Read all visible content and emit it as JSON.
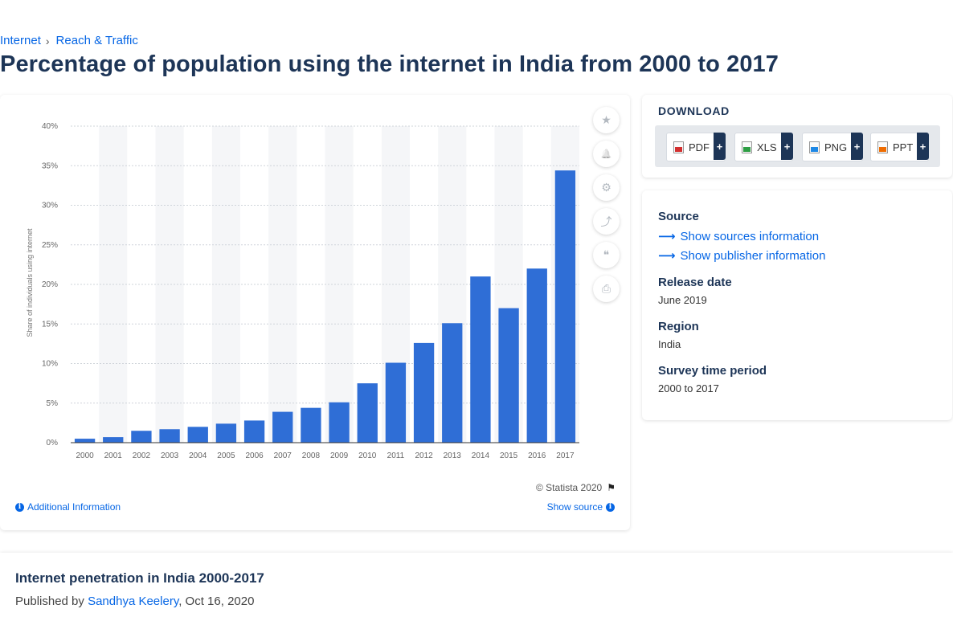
{
  "breadcrumb": {
    "items": [
      "Internet",
      "Reach & Traffic"
    ],
    "separator": "›"
  },
  "page_title": "Percentage of population using the internet in India from 2000 to 2017",
  "chart_data": {
    "type": "bar",
    "categories": [
      "2000",
      "2001",
      "2002",
      "2003",
      "2004",
      "2005",
      "2006",
      "2007",
      "2008",
      "2009",
      "2010",
      "2011",
      "2012",
      "2013",
      "2014",
      "2015",
      "2016",
      "2017"
    ],
    "values": [
      0.5,
      0.7,
      1.5,
      1.7,
      2.0,
      2.4,
      2.8,
      3.9,
      4.4,
      5.1,
      7.5,
      10.1,
      12.6,
      15.1,
      21.0,
      17.0,
      22.0,
      34.4
    ],
    "ylabel": "Share of individuals using internet",
    "xlabel": "",
    "ylim": [
      0,
      40
    ],
    "yticks": [
      "0%",
      "5%",
      "10%",
      "15%",
      "20%",
      "25%",
      "30%",
      "35%",
      "40%"
    ],
    "bar_color": "#2f6ed6",
    "grid": true
  },
  "toolbar": {
    "icons": [
      "star-icon",
      "bell-icon",
      "gear-icon",
      "share-icon",
      "quote-icon",
      "print-icon"
    ],
    "glyphs": [
      "★",
      "🔔",
      "⚙",
      "⤴",
      "❝",
      "⎙"
    ]
  },
  "copyright": "© Statista 2020",
  "additional_info": "Additional Information",
  "show_source": "Show source",
  "download": {
    "title": "DOWNLOAD",
    "buttons": [
      {
        "label": "PDF",
        "color": "#d32f2f"
      },
      {
        "label": "XLS",
        "color": "#2e9e44"
      },
      {
        "label": "PNG",
        "color": "#1e88e5"
      },
      {
        "label": "PPT",
        "color": "#ef6c00"
      }
    ],
    "plus": "+"
  },
  "info": {
    "source_label": "Source",
    "show_sources": "Show sources information",
    "show_publisher": "Show publisher information",
    "release_label": "Release date",
    "release_value": "June 2019",
    "region_label": "Region",
    "region_value": "India",
    "period_label": "Survey time period",
    "period_value": "2000 to 2017"
  },
  "statistic": {
    "title": "Internet penetration in India 2000-2017",
    "published_prefix": "Published by",
    "author": "Sandhya Keelery",
    "date_suffix": ", Oct 16, 2020"
  }
}
